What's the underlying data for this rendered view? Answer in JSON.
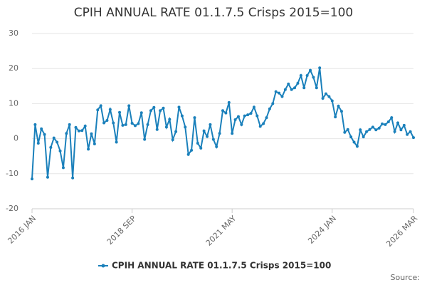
{
  "chart_data": {
    "type": "line",
    "title": "CPIH ANNUAL RATE 01.1.7.5 Crisps 2015=100",
    "categories": [
      "2016 JAN",
      null,
      null,
      null,
      null,
      null,
      null,
      null,
      null,
      null,
      null,
      null,
      null,
      null,
      null,
      null,
      null,
      null,
      null,
      null,
      null,
      null,
      null,
      null,
      null,
      null,
      null,
      null,
      null,
      null,
      null,
      null,
      "2018 SEP",
      null,
      null,
      null,
      null,
      null,
      null,
      null,
      null,
      null,
      null,
      null,
      null,
      null,
      null,
      null,
      null,
      null,
      null,
      null,
      null,
      null,
      null,
      null,
      null,
      null,
      null,
      null,
      null,
      null,
      null,
      null,
      "2021 MAY",
      null,
      null,
      null,
      null,
      null,
      null,
      null,
      null,
      null,
      null,
      null,
      null,
      null,
      null,
      null,
      null,
      null,
      null,
      null,
      null,
      null,
      null,
      null,
      null,
      null,
      null,
      null,
      null,
      null,
      null,
      null,
      "2024 JAN",
      null,
      null,
      null,
      null,
      null,
      null,
      null,
      null,
      null,
      null,
      null,
      null,
      null,
      null,
      null,
      null,
      null,
      null,
      null,
      null,
      null,
      null,
      null,
      null,
      null,
      "2026 MAR"
    ],
    "series": [
      {
        "name": "CPIH ANNUAL RATE 01.1.7.5 Crisps 2015=100",
        "color": "#1a80bb",
        "values": [
          -11.5,
          4,
          -1.3,
          2.8,
          1.2,
          -11,
          -2.5,
          0.2,
          -1,
          -3.5,
          -8.3,
          1.5,
          4,
          -11.2,
          3.2,
          2.2,
          2.3,
          3.6,
          -3,
          1.4,
          -1.5,
          8.2,
          9.4,
          4.5,
          5.2,
          8.3,
          4.5,
          -1,
          7.5,
          3.8,
          4,
          9.4,
          4.4,
          3.7,
          4.3,
          7.4,
          -0.2,
          4,
          8,
          8.9,
          2.6,
          8,
          8.7,
          3.3,
          5.5,
          -0.3,
          2,
          9,
          6.5,
          3.3,
          -4.5,
          -3.3,
          6,
          -1.3,
          -2.7,
          2.2,
          0.6,
          4,
          -0.2,
          -2.3,
          1.5,
          8,
          7.3,
          10.3,
          1.5,
          5.4,
          6.3,
          4,
          6.5,
          6.8,
          7.2,
          9,
          6.5,
          3.5,
          4.3,
          6,
          8.5,
          10,
          13.4,
          13,
          12,
          14,
          15.6,
          14,
          14.5,
          15.8,
          18,
          14.5,
          18,
          19.5,
          17.5,
          14.5,
          20.2,
          11.5,
          12.8,
          12,
          10.8,
          6.2,
          9.3,
          7.8,
          1.8,
          2.6,
          0.5,
          -1,
          -2.2,
          2.5,
          0.5,
          2,
          2.6,
          3.3,
          2.5,
          3,
          4.2,
          4,
          4.8,
          6,
          2,
          4.5,
          2.5,
          3.8,
          1.2,
          2,
          0.3
        ]
      }
    ],
    "ylim": [
      -20,
      30
    ],
    "yticks": [
      -20,
      -10,
      0,
      10,
      20,
      30
    ],
    "grid": true,
    "source": "Source:"
  }
}
